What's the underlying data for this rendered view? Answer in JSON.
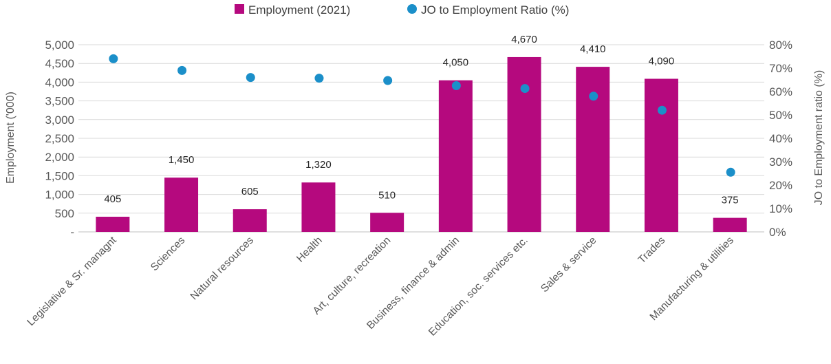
{
  "chart_data": {
    "type": "bar",
    "title": "",
    "categories": [
      "Legislative & Sr. managnt",
      "Sciences",
      "Natural resources",
      "Health",
      "Art, culture, recreation",
      "Business, finance & admin",
      "Education, soc. services etc.",
      "Sales & service",
      "Trades",
      "Manufacturing & utilities"
    ],
    "series": [
      {
        "name": "Employment (2021)",
        "type": "bar",
        "axis": "left",
        "color": "#B5097E",
        "values": [
          405,
          1450,
          605,
          1320,
          510,
          4050,
          4670,
          4410,
          4090,
          375
        ],
        "labels": [
          "405",
          "1,450",
          "605",
          "1,320",
          "510",
          "4,050",
          "4,670",
          "4,410",
          "4,090",
          "375"
        ]
      },
      {
        "name": "JO to Employment Ratio (%)",
        "type": "scatter",
        "axis": "right",
        "color": "#1B8FC9",
        "values": [
          74,
          69,
          66,
          65.7,
          64.7,
          62.5,
          61.3,
          58,
          52,
          25.5
        ]
      }
    ],
    "y_left": {
      "label": "Employment  ('000)",
      "min": 0,
      "max": 5000,
      "ticks": [
        0,
        500,
        1000,
        1500,
        2000,
        2500,
        3000,
        3500,
        4000,
        4500,
        5000
      ],
      "tick_labels": [
        "-",
        "500",
        "1,000",
        "1,500",
        "2,000",
        "2,500",
        "3,000",
        "3,500",
        "4,000",
        "4,500",
        "5,000"
      ]
    },
    "y_right": {
      "label": "JO to Employment ratio (%)",
      "min": 0,
      "max": 80,
      "ticks": [
        0,
        10,
        20,
        30,
        40,
        50,
        60,
        70,
        80
      ],
      "tick_labels": [
        "0%",
        "10%",
        "20%",
        "30%",
        "40%",
        "50%",
        "60%",
        "70%",
        "80%"
      ]
    },
    "grid": true,
    "legend_position": "top"
  }
}
